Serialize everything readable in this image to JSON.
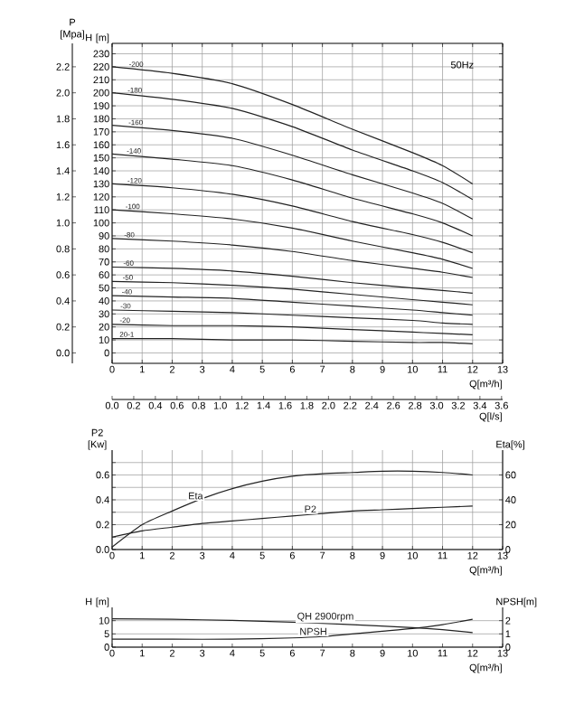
{
  "chart_data": [
    {
      "type": "line",
      "subtitle": "50Hz",
      "xlabel": "Q[m³/h]",
      "ylabel": "H [m]",
      "y2label": "P [Mpa]",
      "x2label": "Q[l/s]",
      "xlim": [
        0,
        13
      ],
      "xticks": [
        0,
        1,
        2,
        3,
        4,
        5,
        6,
        7,
        8,
        9,
        10,
        11,
        12,
        13
      ],
      "ylim": [
        -8,
        238
      ],
      "yticks": [
        0,
        10,
        20,
        30,
        40,
        50,
        60,
        70,
        80,
        90,
        100,
        110,
        120,
        130,
        140,
        150,
        160,
        170,
        180,
        190,
        200,
        210,
        220,
        230
      ],
      "y2lim": [
        -0.08,
        2.38
      ],
      "y2ticks": [
        {
          "value": 0,
          "label": "0.0"
        },
        {
          "value": 0.2,
          "label": "0.2"
        },
        {
          "value": 0.4,
          "label": "0.4"
        },
        {
          "value": 0.6,
          "label": "0.6"
        },
        {
          "value": 0.8,
          "label": "0.8"
        },
        {
          "value": 1.0,
          "label": "1.0"
        },
        {
          "value": 1.2,
          "label": "1.2"
        },
        {
          "value": 1.4,
          "label": "1.4"
        },
        {
          "value": 1.6,
          "label": "1.6"
        },
        {
          "value": 1.8,
          "label": "1.8"
        },
        {
          "value": 2.0,
          "label": "2.0"
        },
        {
          "value": 2.2,
          "label": "2.2"
        }
      ],
      "x2lim": [
        0,
        3.61
      ],
      "x2ticks": [
        {
          "value": 0,
          "label": "0.0"
        },
        {
          "value": 0.2,
          "label": "0.2"
        },
        {
          "value": 0.4,
          "label": "0.4"
        },
        {
          "value": 0.6,
          "label": "0.6"
        },
        {
          "value": 0.8,
          "label": "0.8"
        },
        {
          "value": 1.0,
          "label": "1.0"
        },
        {
          "value": 1.2,
          "label": "1.2"
        },
        {
          "value": 1.4,
          "label": "1.4"
        },
        {
          "value": 1.6,
          "label": "1.6"
        },
        {
          "value": 1.8,
          "label": "1.8"
        },
        {
          "value": 2.0,
          "label": "2.0"
        },
        {
          "value": 2.2,
          "label": "2.2"
        },
        {
          "value": 2.4,
          "label": "2.4"
        },
        {
          "value": 2.6,
          "label": "2.6"
        },
        {
          "value": 2.8,
          "label": "2.8"
        },
        {
          "value": 3.0,
          "label": "3.0"
        },
        {
          "value": 3.2,
          "label": "3.2"
        },
        {
          "value": 3.4,
          "label": "3.4"
        },
        {
          "value": 3.6,
          "label": "3.6"
        }
      ],
      "grid": true,
      "series": [
        {
          "name": "-200",
          "color": "#222222",
          "x": [
            0,
            2,
            4,
            6,
            8,
            10,
            11,
            12
          ],
          "values": [
            220,
            215,
            207,
            191,
            172,
            154,
            144,
            130
          ]
        },
        {
          "name": "-180",
          "color": "#222222",
          "x": [
            0,
            2,
            4,
            6,
            8,
            10,
            11,
            12
          ],
          "values": [
            200,
            195,
            188,
            174,
            156,
            140,
            131,
            118
          ]
        },
        {
          "name": "-160",
          "color": "#222222",
          "x": [
            0,
            2,
            4,
            6,
            8,
            10,
            11,
            12
          ],
          "values": [
            175,
            171,
            165,
            152,
            137,
            123,
            115,
            103
          ]
        },
        {
          "name": "-140",
          "color": "#222222",
          "x": [
            0,
            2,
            4,
            6,
            8,
            10,
            11,
            12
          ],
          "values": [
            153,
            149,
            144,
            133,
            119,
            107,
            100,
            90
          ]
        },
        {
          "name": "-120",
          "color": "#222222",
          "x": [
            0,
            2,
            4,
            6,
            8,
            10,
            11,
            12
          ],
          "values": [
            130,
            127,
            122,
            113,
            101,
            91,
            85,
            77
          ]
        },
        {
          "name": "-100",
          "color": "#222222",
          "x": [
            0,
            2,
            4,
            6,
            8,
            10,
            11,
            12
          ],
          "values": [
            110,
            107,
            103,
            96,
            86,
            77,
            72,
            65
          ]
        },
        {
          "name": "-80",
          "color": "#222222",
          "x": [
            0,
            2,
            4,
            6,
            8,
            10,
            11,
            12
          ],
          "values": [
            88,
            86,
            83,
            78,
            71,
            65,
            62,
            58
          ]
        },
        {
          "name": "-60",
          "color": "#222222",
          "x": [
            0,
            2,
            4,
            6,
            8,
            10,
            11,
            12
          ],
          "values": [
            66,
            65,
            63,
            59,
            54,
            50,
            48,
            46
          ]
        },
        {
          "name": "-50",
          "color": "#222222",
          "x": [
            0,
            2,
            4,
            6,
            8,
            10,
            11,
            12
          ],
          "values": [
            55,
            54,
            52,
            49,
            45,
            41,
            39,
            37
          ]
        },
        {
          "name": "-40",
          "color": "#222222",
          "x": [
            0,
            2,
            4,
            6,
            8,
            10,
            11,
            12
          ],
          "values": [
            44,
            43,
            42,
            39,
            36,
            33,
            31,
            29
          ]
        },
        {
          "name": "-30",
          "color": "#222222",
          "x": [
            0,
            2,
            4,
            6,
            8,
            10,
            11,
            12
          ],
          "values": [
            33,
            32,
            31,
            29,
            27,
            25,
            23,
            22
          ]
        },
        {
          "name": "-20",
          "color": "#222222",
          "x": [
            0,
            2,
            4,
            6,
            8,
            10,
            11,
            12
          ],
          "values": [
            22,
            21,
            21,
            20,
            18,
            16,
            15,
            14
          ]
        },
        {
          "name": "20-1",
          "color": "#222222",
          "x": [
            0,
            2,
            4,
            6,
            8,
            10,
            11,
            12
          ],
          "values": [
            11,
            11,
            10,
            10,
            9,
            8,
            8,
            7
          ]
        }
      ]
    },
    {
      "type": "line",
      "xlabel": "Q[m³/h]",
      "ylabel": "P2 [Kw]",
      "y2label": "Eta[%]",
      "xlim": [
        0,
        13
      ],
      "xticks": [
        0,
        1,
        2,
        3,
        4,
        5,
        6,
        7,
        8,
        9,
        10,
        11,
        12,
        13
      ],
      "ylim": [
        0,
        0.8
      ],
      "yticks": [
        {
          "value": 0,
          "label": "0.0"
        },
        {
          "value": 0.1,
          "label": null
        },
        {
          "value": 0.2,
          "label": "0.2"
        },
        {
          "value": 0.3,
          "label": null
        },
        {
          "value": 0.4,
          "label": "0.4"
        },
        {
          "value": 0.5,
          "label": null
        },
        {
          "value": 0.6,
          "label": "0.6"
        },
        {
          "value": 0.7,
          "label": null
        }
      ],
      "y2lim": [
        0,
        80
      ],
      "y2ticks": [
        0,
        20,
        40,
        60
      ],
      "grid": true,
      "series": [
        {
          "name": "Eta",
          "color": "#222222",
          "axis": "y2",
          "x": [
            0,
            1,
            2,
            3,
            4,
            5,
            6,
            7,
            8,
            9,
            10,
            11,
            12
          ],
          "values": [
            2,
            20,
            31,
            41,
            49,
            55,
            59,
            61,
            62,
            63,
            63,
            62,
            60
          ]
        },
        {
          "name": "P2",
          "color": "#222222",
          "x": [
            0,
            1,
            2,
            3,
            4,
            5,
            6,
            7,
            8,
            9,
            10,
            11,
            12
          ],
          "values": [
            0.1,
            0.15,
            0.18,
            0.21,
            0.23,
            0.25,
            0.27,
            0.29,
            0.31,
            0.32,
            0.33,
            0.34,
            0.35
          ]
        }
      ]
    },
    {
      "type": "line",
      "xlabel": "Q[m³/h]",
      "ylabel": "H [m]",
      "y2label": "NPSH[m]",
      "xlim": [
        0,
        13
      ],
      "xticks": [
        0,
        1,
        2,
        3,
        4,
        5,
        6,
        7,
        8,
        9,
        10,
        11,
        12,
        13
      ],
      "ylim": [
        0,
        15
      ],
      "yticks": [
        0,
        5,
        10
      ],
      "y2lim": [
        0,
        3
      ],
      "y2ticks": [
        0,
        1,
        2
      ],
      "grid": "y",
      "series": [
        {
          "name": "QH 2900rpm",
          "color": "#222222",
          "x": [
            0,
            2,
            4,
            6,
            8,
            10,
            11,
            12
          ],
          "values": [
            10.7,
            10.5,
            10.1,
            9.4,
            8.5,
            7.4,
            6.6,
            5.5
          ]
        },
        {
          "name": "NPSH",
          "color": "#222222",
          "axis": "y2",
          "x": [
            0,
            2,
            4,
            6,
            7,
            8,
            9,
            10,
            11,
            12
          ],
          "values": [
            0.6,
            0.6,
            0.6,
            0.7,
            0.8,
            1.0,
            1.2,
            1.4,
            1.7,
            2.1
          ]
        }
      ]
    }
  ]
}
